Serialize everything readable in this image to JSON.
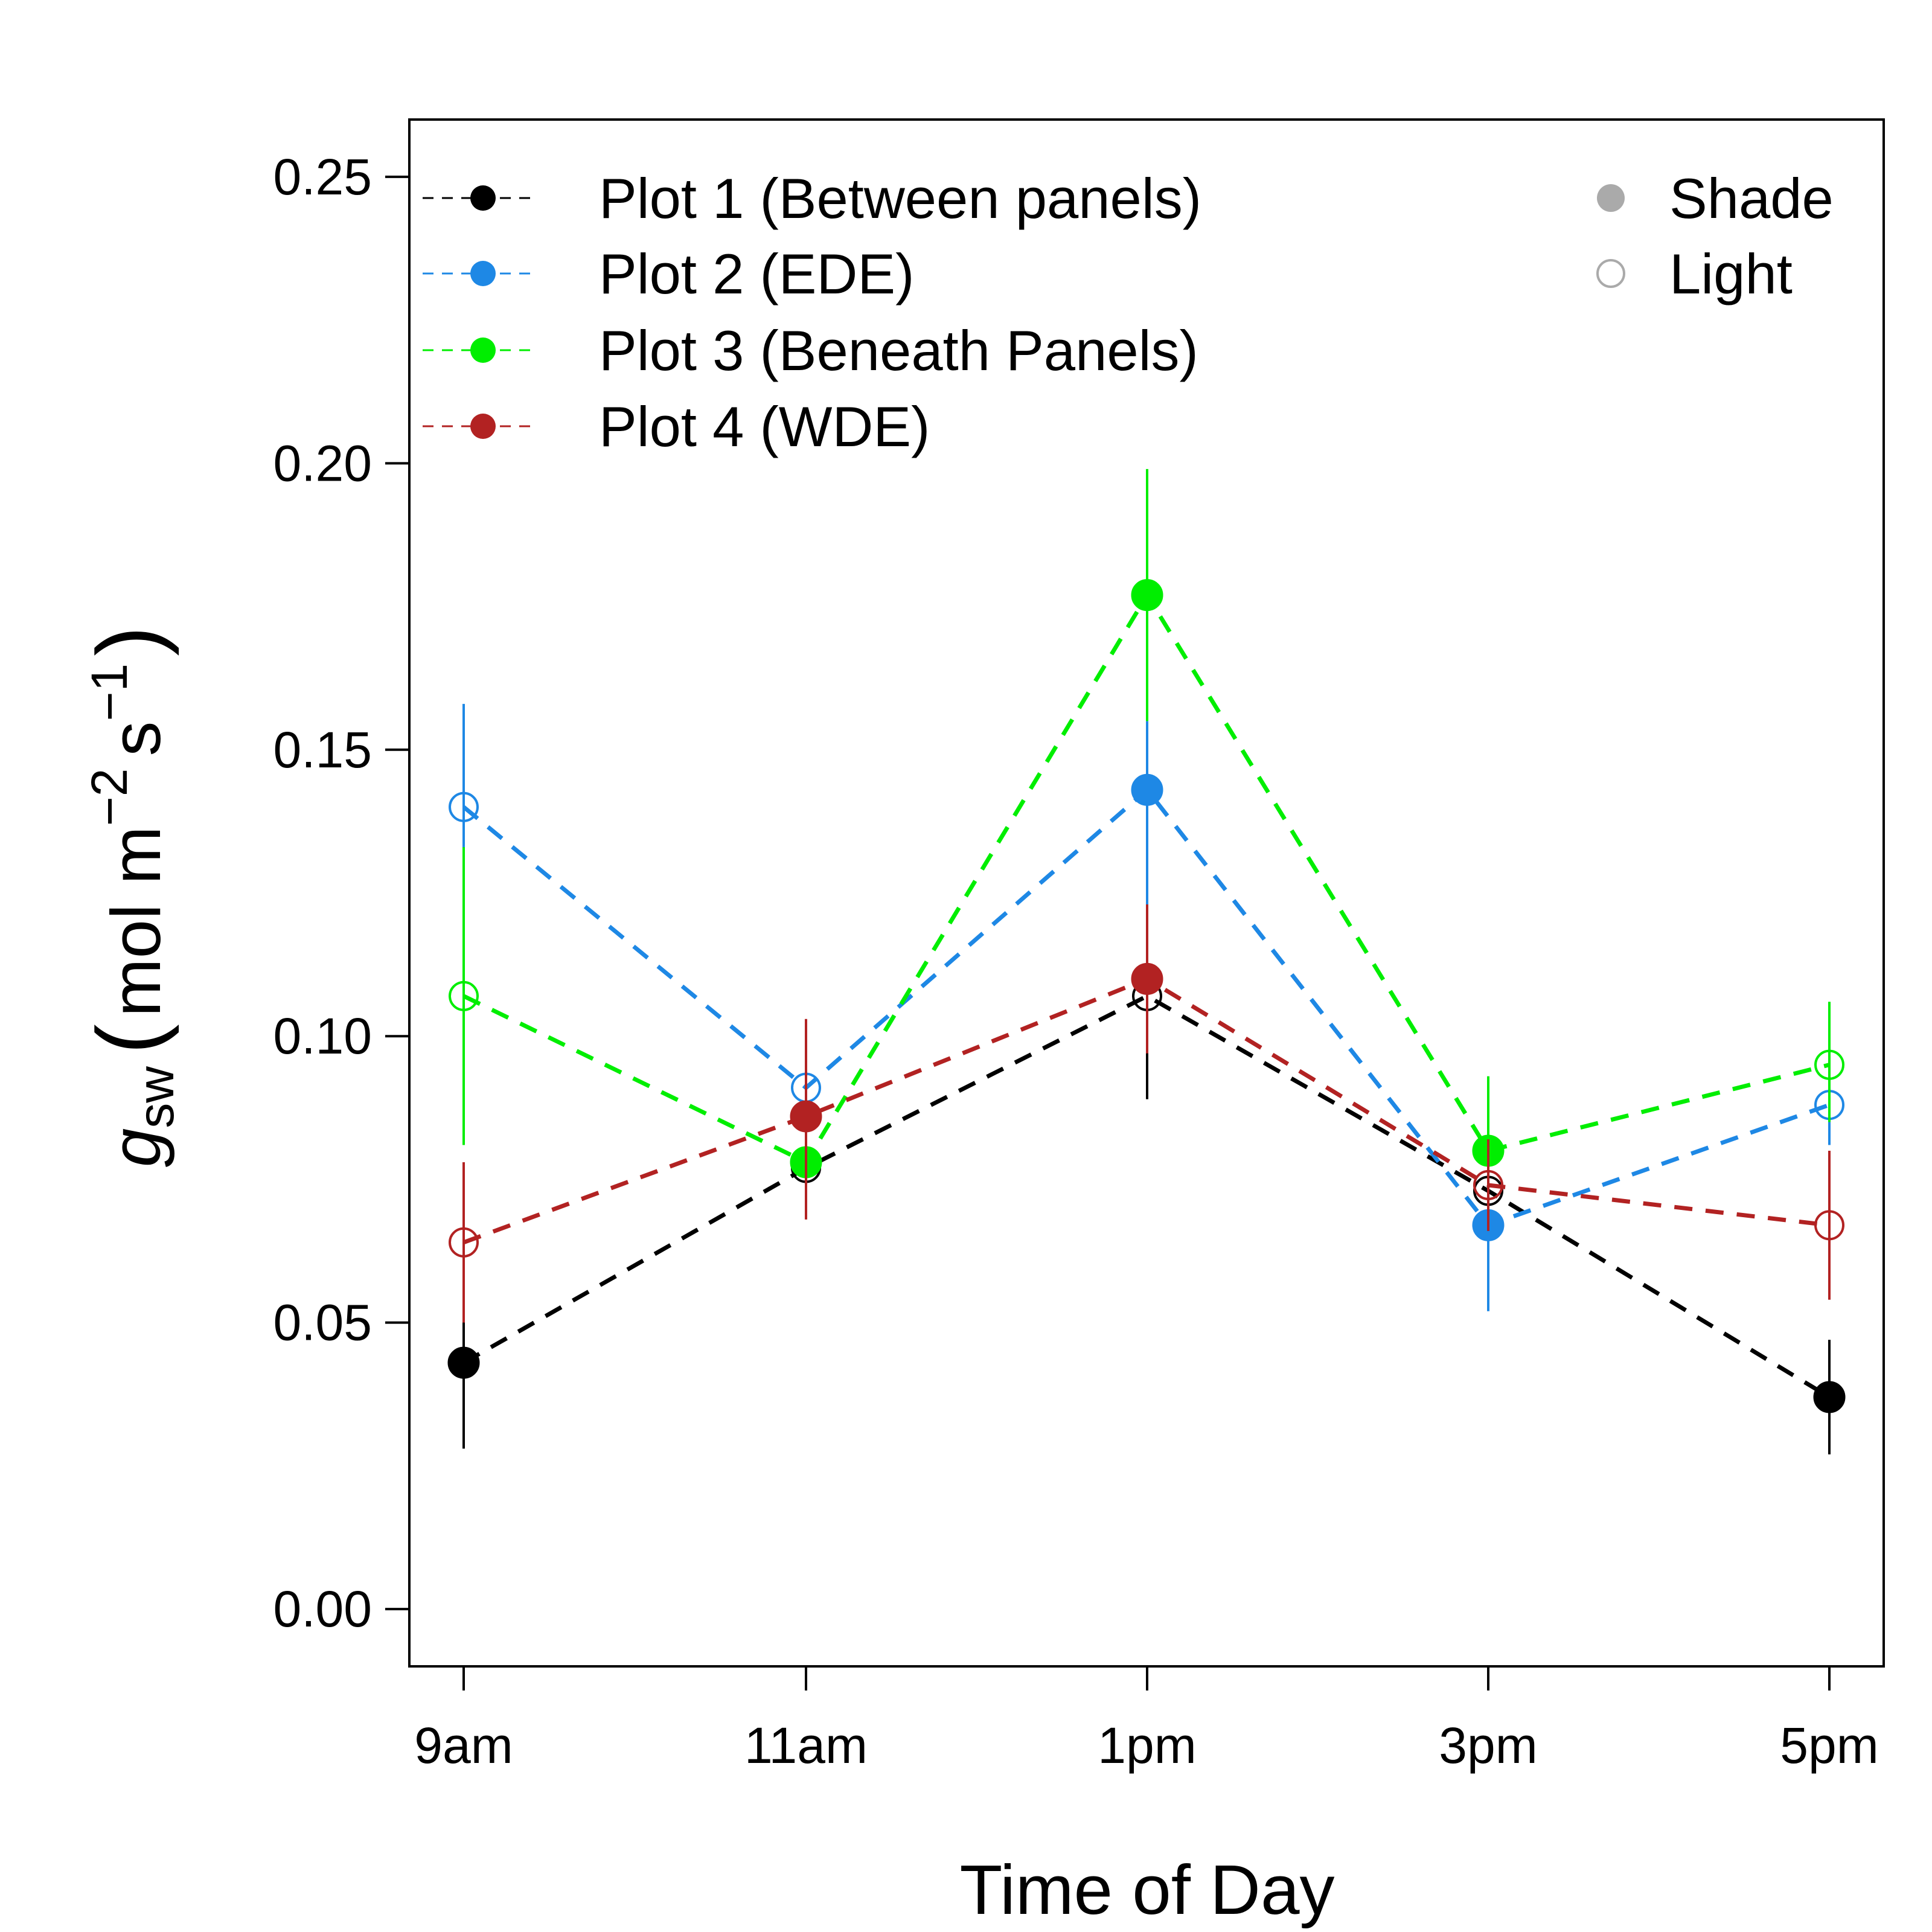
{
  "chart_data": {
    "type": "line",
    "title": "",
    "xlabel": "Time of Day",
    "ylabel": {
      "symbol": "g",
      "subscript": "sw",
      "unit_prefix": "mol m",
      "exp1": "−2",
      "unit_mid": "s",
      "exp2": "−1"
    },
    "categories": [
      "9am",
      "11am",
      "1pm",
      "3pm",
      "5pm"
    ],
    "ylim": [
      -0.01,
      0.26
    ],
    "yticks": [
      0.0,
      0.05,
      0.1,
      0.15,
      0.2,
      0.25
    ],
    "ytick_labels": [
      "0.00",
      "0.05",
      "0.10",
      "0.15",
      "0.20",
      "0.25"
    ],
    "grid": false,
    "legend": {
      "position": "top-left",
      "shape_position": "top-right",
      "shape_entries": [
        {
          "label": "Shade",
          "filled": true,
          "color": "#aaaaaa"
        },
        {
          "label": "Light",
          "filled": false,
          "color": "#aaaaaa"
        }
      ]
    },
    "series": [
      {
        "name": "Plot 1 (Between panels)",
        "color": "#000000",
        "values": [
          0.043,
          0.077,
          0.107,
          0.073,
          0.037
        ],
        "err_low": [
          0.028,
          0.074,
          0.089,
          0.07,
          0.027
        ],
        "err_high": [
          0.058,
          0.08,
          0.123,
          0.076,
          0.047
        ],
        "shade": [
          true,
          false,
          false,
          false,
          true
        ]
      },
      {
        "name": "Plot 2 (EDE)",
        "color": "#1e88e5",
        "values": [
          0.14,
          0.091,
          0.143,
          0.067,
          0.088
        ],
        "err_low": [
          0.122,
          0.086,
          0.123,
          0.052,
          0.081
        ],
        "err_high": [
          0.158,
          0.096,
          0.155,
          0.082,
          0.095
        ],
        "shade": [
          false,
          false,
          true,
          true,
          false
        ]
      },
      {
        "name": "Plot 3 (Beneath Panels)",
        "color": "#00ee00",
        "values": [
          0.107,
          0.078,
          0.177,
          0.08,
          0.095
        ],
        "err_low": [
          0.081,
          0.075,
          0.155,
          0.068,
          0.085
        ],
        "err_high": [
          0.133,
          0.081,
          0.199,
          0.093,
          0.106
        ],
        "shade": [
          false,
          true,
          true,
          true,
          false
        ]
      },
      {
        "name": "Plot 4 (WDE)",
        "color": "#b22222",
        "values": [
          0.064,
          0.086,
          0.11,
          0.074,
          0.067
        ],
        "err_low": [
          0.05,
          0.068,
          0.097,
          0.066,
          0.054
        ],
        "err_high": [
          0.078,
          0.103,
          0.123,
          0.082,
          0.08
        ],
        "shade": [
          false,
          true,
          true,
          false,
          false
        ]
      }
    ]
  }
}
